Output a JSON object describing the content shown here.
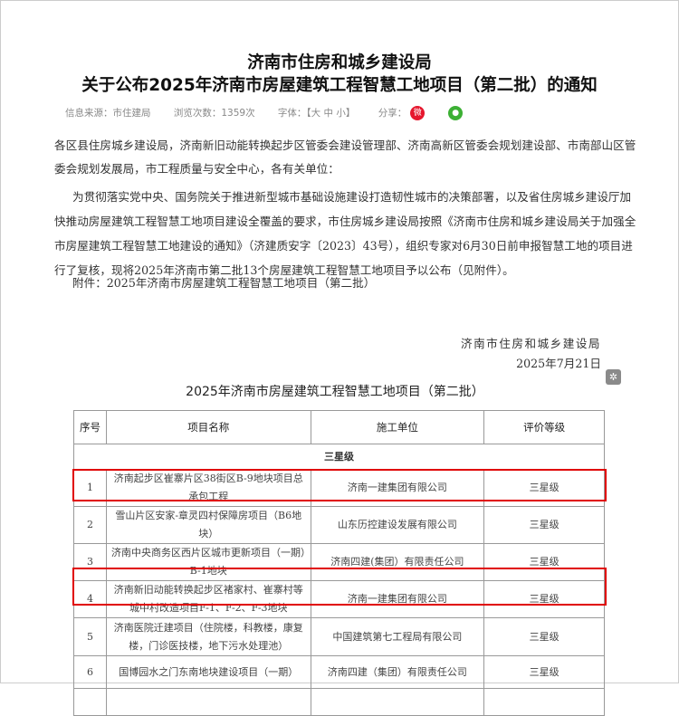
{
  "header": {
    "title_line1": "济南市住房和城乡建设局",
    "title_line2": "关于公布2025年济南市房屋建筑工程智慧工地项目（第二批）的通知"
  },
  "meta": {
    "source": "信息来源：市住建局",
    "views": "浏览次数：1359次",
    "font_size": "字体：【大 中 小】",
    "share_label": "分享：",
    "share_icons": [
      "weibo-icon",
      "wechat-icon"
    ],
    "weibo_color": "#e6162d",
    "wechat_color": "#3cb034"
  },
  "body": {
    "p1": [
      "各区县住房城乡建设局，济南新旧动能转换起步区管委会建设管理部、济南高新区管委会规划建设部、市南部山区管",
      "委会规划发展局，市工程质量与安全中心，各有关单位："
    ],
    "p2": [
      "为贯彻落实党中央、国务院关于推进新型城市基础设施建设打造韧性城市的决策部署，以及省住房城乡建设厅加",
      "快推动房屋建筑工程智慧工地项目建设全覆盖的要求，市住房城乡建设局按照《济南市住房和城乡建设局关于加强全",
      "市房屋建筑工程智慧工地建设的通知》（济建质安字〔2023〕43号），组织专家对6月30日前申报智慧工地的项目进",
      "行了复核，现将2025年济南市第二批13个房屋建筑工程智慧工地项目予以公布（见附件）。"
    ],
    "attachment": "附件：2025年济南市房屋建筑工程智慧工地项目（第二批）",
    "signature": "济南市住房和城乡建设局",
    "date": "2025年7月21日"
  },
  "table": {
    "title": "2025年济南市房屋建筑工程智慧工地项目（第二批）",
    "headers": [
      "序号",
      "项目名称",
      "施工单位",
      "评价等级"
    ],
    "section": "三星级",
    "rows": [
      {
        "no": "1",
        "name": "济南起步区崔寨片区38街区B-9地块项目总承包工程",
        "company": "济南一建集团有限公司",
        "level": "三星级",
        "highlighted": true
      },
      {
        "no": "2",
        "name": "雪山片区安家-章灵四村保障房项目（B6地块）",
        "company": "山东历控建设发展有限公司",
        "level": "三星级",
        "highlighted": false
      },
      {
        "no": "3",
        "name": "济南中央商务区西片区城市更新项目（一期）B-1地块",
        "company": "济南四建(集团）有限责任公司",
        "level": "三星级",
        "highlighted": false
      },
      {
        "no": "4",
        "name": "济南新旧动能转换起步区褚家村、崔寨村等城中村改造项目F-1、F-2、F-3地块",
        "company": "济南一建集团有限公司",
        "level": "三星级",
        "highlighted": true
      },
      {
        "no": "5",
        "name": "济南医院迁建项目（住院楼，科教楼，康复楼，门诊医技楼，地下污水处理池）",
        "company": "中国建筑第七工程局有限公司",
        "level": "三星级",
        "highlighted": false
      },
      {
        "no": "6",
        "name": "国博园水之门东南地块建设项目（一期）",
        "company": "济南四建（集团）有限责任公司",
        "level": "三星级",
        "highlighted": false
      }
    ],
    "highlight_color": "#e00000"
  }
}
